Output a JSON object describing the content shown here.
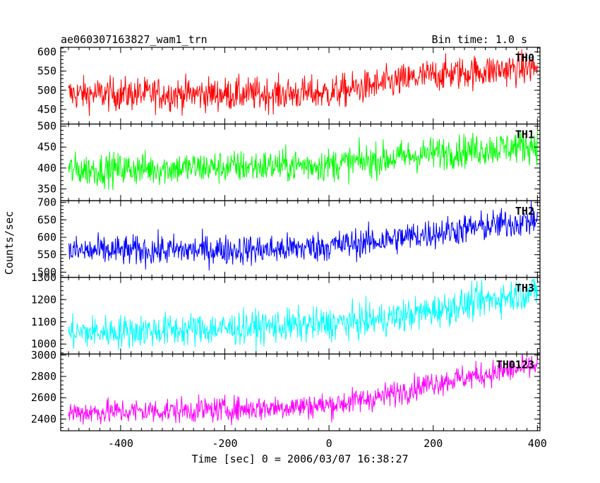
{
  "header": {
    "title": "ae060307163827_wam1_trn",
    "bin_time": "Bin time: 1.0 s"
  },
  "chart_data": {
    "type": "line",
    "xlabel": "Time [sec] 0 = 2006/03/07 16:38:27",
    "ylabel": "Counts/sec",
    "xlim": [
      -515,
      405
    ],
    "x_ticks": [
      -400,
      -200,
      0,
      200,
      400
    ],
    "x_start": -500,
    "x_end": 400,
    "panels": [
      {
        "name": "TH0",
        "color": "#ff0000",
        "ylim": [
          412,
          612
        ],
        "y_ticks": [
          450,
          500,
          550,
          600
        ],
        "trend": [
          [
            -500,
            490
          ],
          [
            -100,
            490
          ],
          [
            0,
            493
          ],
          [
            100,
            515
          ],
          [
            200,
            540
          ],
          [
            400,
            560
          ]
        ],
        "noise": 22
      },
      {
        "name": "TH1",
        "color": "#00ff00",
        "ylim": [
          322,
          505
        ],
        "y_ticks": [
          350,
          400,
          450,
          500
        ],
        "trend": [
          [
            -500,
            395
          ],
          [
            -200,
            402
          ],
          [
            0,
            408
          ],
          [
            100,
            420
          ],
          [
            200,
            435
          ],
          [
            400,
            455
          ]
        ],
        "noise": 20
      },
      {
        "name": "TH2",
        "color": "#0000ff",
        "ylim": [
          485,
          705
        ],
        "y_ticks": [
          500,
          550,
          600,
          650,
          700
        ],
        "trend": [
          [
            -500,
            560
          ],
          [
            -100,
            565
          ],
          [
            0,
            575
          ],
          [
            100,
            590
          ],
          [
            200,
            612
          ],
          [
            400,
            650
          ]
        ],
        "noise": 22
      },
      {
        "name": "TH3",
        "color": "#00ffff",
        "ylim": [
          955,
          1300
        ],
        "y_ticks": [
          1000,
          1100,
          1200,
          1300
        ],
        "trend": [
          [
            -500,
            1050
          ],
          [
            -200,
            1070
          ],
          [
            0,
            1090
          ],
          [
            100,
            1110
          ],
          [
            200,
            1150
          ],
          [
            400,
            1240
          ]
        ],
        "noise": 38
      },
      {
        "name": "TH0123",
        "color": "#ff00ff",
        "ylim": [
          2290,
          3010
        ],
        "y_ticks": [
          2400,
          2600,
          2800,
          3000
        ],
        "trend": [
          [
            -500,
            2460
          ],
          [
            -200,
            2490
          ],
          [
            0,
            2530
          ],
          [
            100,
            2610
          ],
          [
            200,
            2740
          ],
          [
            400,
            2900
          ]
        ],
        "noise": 60
      }
    ]
  }
}
